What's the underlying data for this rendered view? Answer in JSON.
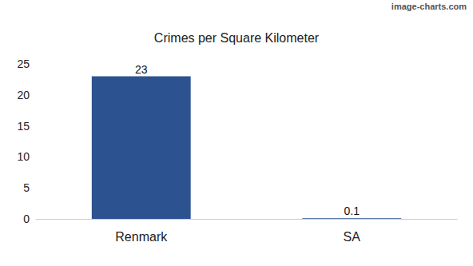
{
  "chart_data": {
    "type": "bar",
    "title": "Crimes per Square Kilometer",
    "categories": [
      "Renmark",
      "SA"
    ],
    "values": [
      23,
      0.1
    ],
    "color": "#2c5290",
    "ylim": [
      0,
      25
    ],
    "yticks": [
      0,
      5,
      10,
      15,
      20,
      25
    ],
    "grid": false,
    "data_labels": true,
    "annotations": [
      "image-charts.com"
    ]
  }
}
